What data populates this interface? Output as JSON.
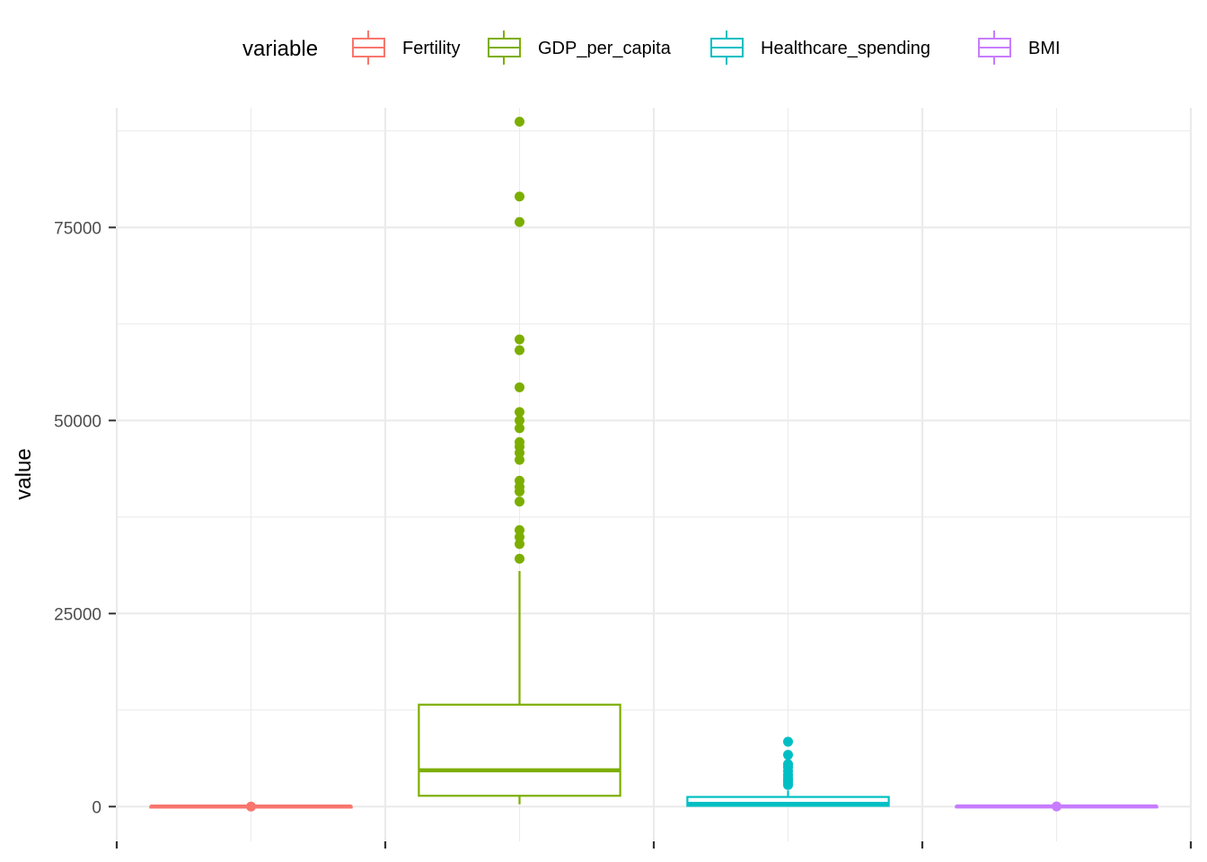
{
  "chart_data": {
    "type": "boxplot",
    "ylabel": "value",
    "xlabel": "",
    "ylim": [
      -4500,
      90500
    ],
    "yticks": [
      0,
      25000,
      50000,
      75000
    ],
    "grid": true,
    "legend": {
      "title": "variable",
      "placement": "top"
    },
    "series": [
      {
        "name": "Fertility",
        "color": "#F8766D",
        "stats": {
          "min": 1,
          "q1": 2,
          "median": 2.5,
          "q3": 4,
          "max": 7
        },
        "outliers": []
      },
      {
        "name": "GDP_per_capita",
        "color": "#7CAE00",
        "stats": {
          "min": 300,
          "q1": 1400,
          "median": 4700,
          "q3": 13200,
          "max": 30500
        },
        "outliers": [
          32100,
          34000,
          34900,
          35800,
          39500,
          40800,
          41400,
          42200,
          44900,
          45800,
          46600,
          47200,
          49000,
          50000,
          51100,
          54300,
          59100,
          60500,
          75700,
          79000,
          88700
        ]
      },
      {
        "name": "Healthcare_spending",
        "color": "#00BFC4",
        "stats": {
          "min": 10,
          "q1": 100,
          "median": 350,
          "q3": 1250,
          "max": 2100
        },
        "outliers": [
          2800,
          3100,
          3400,
          3700,
          4100,
          4600,
          5100,
          5500,
          6700,
          8400
        ]
      },
      {
        "name": "BMI",
        "color": "#C77CFF",
        "stats": {
          "min": 20,
          "q1": 23,
          "median": 25,
          "q3": 27,
          "max": 30
        },
        "outliers": []
      }
    ]
  }
}
